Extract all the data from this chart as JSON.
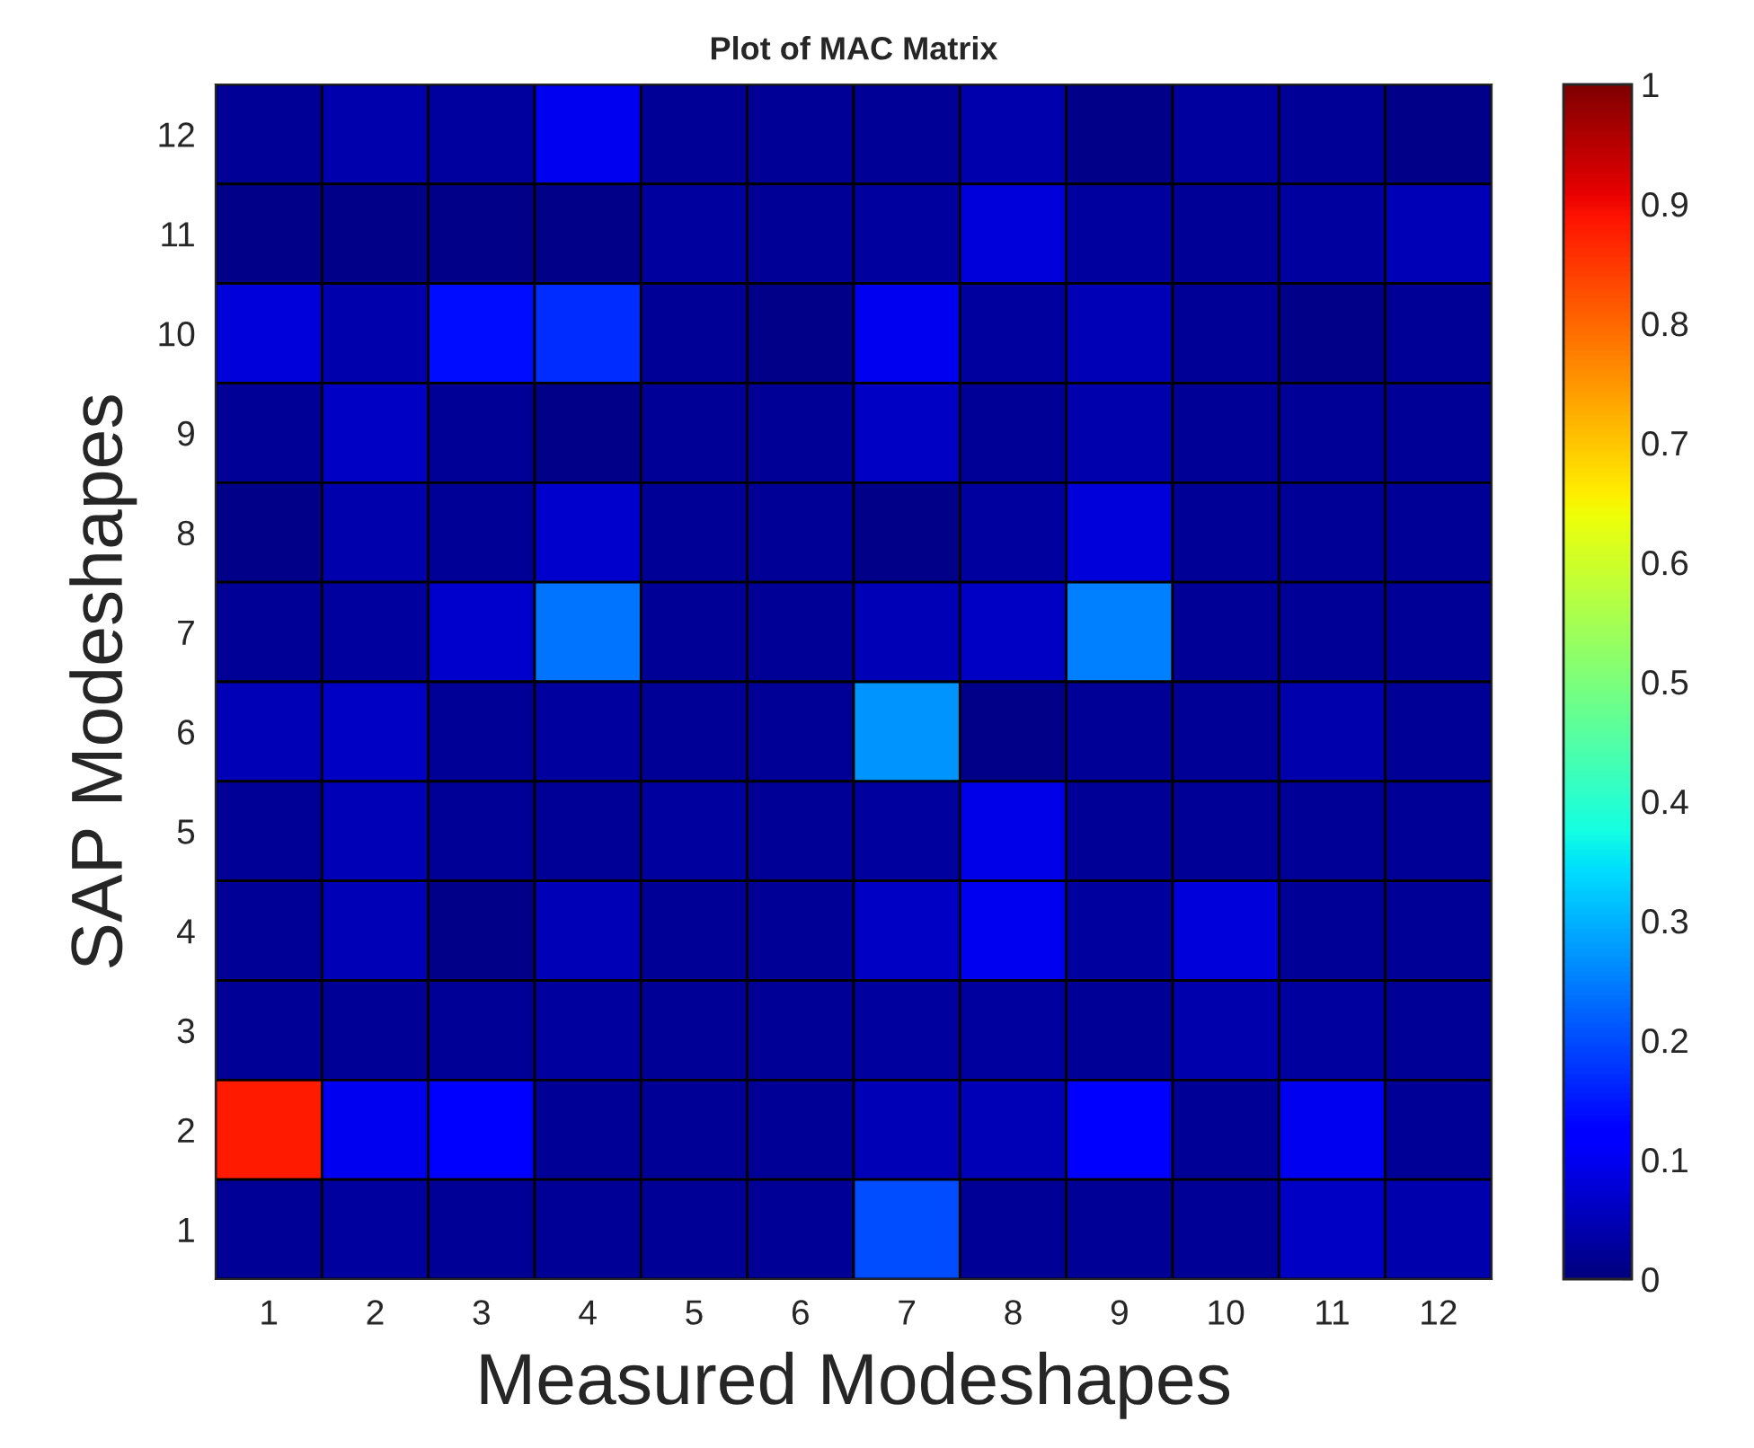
{
  "chart_data": {
    "type": "heatmap",
    "title": "Plot of MAC Matrix",
    "xlabel": "Measured Modeshapes",
    "ylabel": "SAP Modeshapes",
    "categories": [
      "1",
      "2",
      "3",
      "4",
      "5",
      "6",
      "7",
      "8",
      "9",
      "10",
      "11",
      "12"
    ],
    "y_categories": [
      "12",
      "11",
      "10",
      "9",
      "8",
      "7",
      "6",
      "5",
      "4",
      "3",
      "2",
      "1"
    ],
    "cells": [
      [
        0.02,
        0.04,
        0.03,
        0.1,
        0.02,
        0.02,
        0.02,
        0.04,
        0.01,
        0.03,
        0.02,
        0.01
      ],
      [
        0.01,
        0.01,
        0.01,
        0.01,
        0.03,
        0.02,
        0.03,
        0.08,
        0.03,
        0.02,
        0.03,
        0.05
      ],
      [
        0.08,
        0.04,
        0.14,
        0.17,
        0.02,
        0.01,
        0.1,
        0.03,
        0.05,
        0.02,
        0.01,
        0.02
      ],
      [
        0.02,
        0.06,
        0.02,
        0.01,
        0.02,
        0.02,
        0.06,
        0.02,
        0.04,
        0.02,
        0.02,
        0.02
      ],
      [
        0.01,
        0.04,
        0.02,
        0.07,
        0.02,
        0.02,
        0.01,
        0.03,
        0.08,
        0.02,
        0.02,
        0.02
      ],
      [
        0.02,
        0.03,
        0.07,
        0.24,
        0.02,
        0.02,
        0.05,
        0.06,
        0.25,
        0.02,
        0.02,
        0.02
      ],
      [
        0.05,
        0.06,
        0.02,
        0.03,
        0.02,
        0.02,
        0.27,
        0.01,
        0.02,
        0.02,
        0.04,
        0.02
      ],
      [
        0.02,
        0.05,
        0.02,
        0.02,
        0.03,
        0.02,
        0.03,
        0.09,
        0.02,
        0.02,
        0.02,
        0.02
      ],
      [
        0.02,
        0.05,
        0.01,
        0.05,
        0.02,
        0.02,
        0.06,
        0.1,
        0.03,
        0.08,
        0.02,
        0.02
      ],
      [
        0.02,
        0.02,
        0.02,
        0.03,
        0.02,
        0.02,
        0.03,
        0.03,
        0.02,
        0.04,
        0.03,
        0.02
      ],
      [
        0.88,
        0.1,
        0.12,
        0.02,
        0.02,
        0.02,
        0.05,
        0.05,
        0.12,
        0.02,
        0.1,
        0.02
      ],
      [
        0.02,
        0.03,
        0.02,
        0.02,
        0.02,
        0.02,
        0.2,
        0.02,
        0.02,
        0.02,
        0.06,
        0.04
      ]
    ],
    "clim": [
      0,
      1
    ],
    "cticks": [
      0,
      0.1,
      0.2,
      0.3,
      0.4,
      0.5,
      0.6,
      0.7,
      0.8,
      0.9,
      1
    ]
  }
}
